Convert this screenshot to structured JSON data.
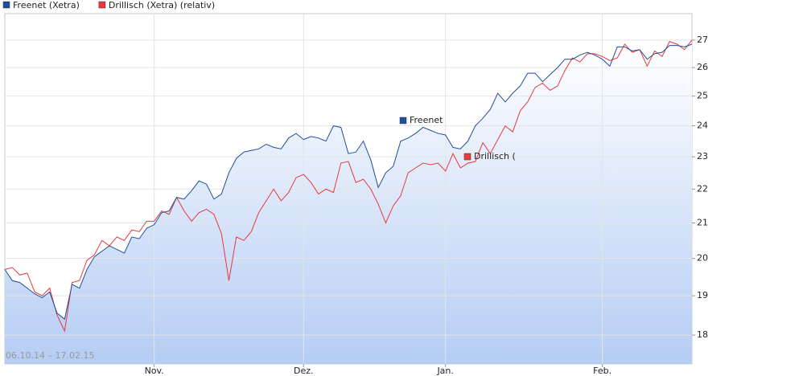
{
  "chart_data": {
    "type": "line",
    "date_range": "06.10.14 – 17.02.15",
    "annotations": [
      "Freenet",
      "Drillisch ("
    ],
    "x": [
      0,
      1,
      2,
      3,
      4,
      5,
      6,
      7,
      8,
      9,
      10,
      11,
      12,
      13,
      14,
      15,
      16,
      17,
      18,
      19,
      20,
      21,
      22,
      23,
      24,
      25,
      26,
      27,
      28,
      29,
      30,
      31,
      32,
      33,
      34,
      35,
      36,
      37,
      38,
      39,
      40,
      41,
      42,
      43,
      44,
      45,
      46,
      47,
      48,
      49,
      50,
      51,
      52,
      53,
      54,
      55,
      56,
      57,
      58,
      59,
      60,
      61,
      62,
      63,
      64,
      65,
      66,
      67,
      68,
      69,
      70,
      71,
      72,
      73,
      74,
      75,
      76,
      77,
      78,
      79,
      80,
      81,
      82,
      83,
      84,
      85,
      86,
      87,
      88,
      89,
      90,
      91,
      92
    ],
    "series": [
      {
        "name": "Freenet (Xetra)",
        "color": "#1f4f9a",
        "values": [
          19.7,
          19.4,
          19.35,
          19.2,
          19.05,
          18.95,
          19.1,
          18.55,
          18.4,
          19.3,
          19.2,
          19.7,
          20.05,
          20.2,
          20.35,
          20.25,
          20.15,
          20.6,
          20.55,
          20.85,
          20.95,
          21.3,
          21.35,
          21.75,
          21.7,
          21.95,
          22.25,
          22.15,
          21.7,
          21.85,
          22.5,
          22.95,
          23.15,
          23.2,
          23.25,
          23.4,
          23.3,
          23.25,
          23.6,
          23.75,
          23.55,
          23.65,
          23.6,
          23.5,
          24.0,
          23.95,
          23.1,
          23.15,
          23.5,
          22.9,
          22.05,
          22.5,
          22.7,
          23.5,
          23.6,
          23.75,
          23.95,
          23.85,
          23.75,
          23.7,
          23.3,
          23.25,
          23.5,
          24.0,
          24.25,
          24.55,
          25.1,
          24.8,
          25.1,
          25.35,
          25.8,
          25.8,
          25.5,
          25.75,
          26.0,
          26.3,
          26.3,
          26.45,
          26.55,
          26.45,
          26.3,
          26.05,
          26.75,
          26.75,
          26.6,
          26.65,
          26.3,
          26.5,
          26.55,
          26.8,
          26.8,
          26.75,
          26.85
        ]
      },
      {
        "name": "Drillisch (Xetra) (relativ)",
        "color": "#e8393d",
        "values": [
          19.7,
          19.75,
          19.55,
          19.6,
          19.1,
          19.0,
          19.2,
          18.5,
          18.1,
          19.35,
          19.4,
          19.95,
          20.1,
          20.5,
          20.35,
          20.6,
          20.5,
          20.8,
          20.75,
          21.05,
          21.05,
          21.35,
          21.25,
          21.75,
          21.35,
          21.05,
          21.3,
          21.4,
          21.25,
          20.7,
          19.4,
          20.6,
          20.5,
          20.75,
          21.3,
          21.65,
          22.0,
          21.65,
          21.9,
          22.35,
          22.45,
          22.2,
          21.85,
          22.0,
          21.9,
          22.8,
          22.85,
          22.2,
          22.3,
          22.0,
          21.55,
          21.0,
          21.5,
          21.8,
          22.5,
          22.65,
          22.8,
          22.75,
          22.8,
          22.55,
          23.1,
          22.65,
          22.8,
          22.85,
          23.45,
          23.1,
          23.55,
          24.0,
          23.8,
          24.5,
          24.8,
          25.3,
          25.45,
          25.2,
          25.35,
          25.9,
          26.35,
          26.2,
          26.5,
          26.5,
          26.4,
          26.25,
          26.35,
          26.85,
          26.55,
          26.65,
          26.05,
          26.6,
          26.4,
          26.95,
          26.85,
          26.65,
          27.0
        ]
      }
    ],
    "xlim": [
      0,
      92
    ],
    "xticks": [
      {
        "value": 20,
        "label": "Nov."
      },
      {
        "value": 40,
        "label": "Dez."
      },
      {
        "value": 59,
        "label": "Jan."
      },
      {
        "value": 80,
        "label": "Feb."
      }
    ],
    "ylim": [
      17.3,
      28
    ],
    "yticks": [
      18,
      19,
      20,
      21,
      22,
      23,
      24,
      25,
      26,
      27
    ],
    "yscale": "log",
    "grid": true,
    "legend": "top-left"
  }
}
